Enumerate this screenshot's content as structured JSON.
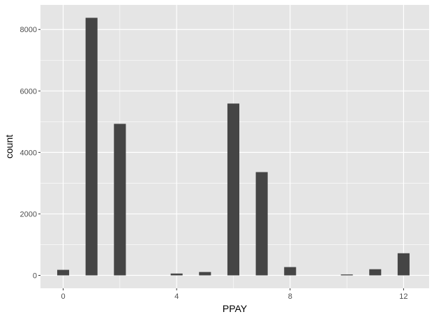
{
  "chart_data": {
    "type": "bar",
    "xlabel": "PPAY",
    "ylabel": "count",
    "x": [
      0,
      1,
      2,
      4,
      5,
      6,
      7,
      8,
      10,
      11,
      12
    ],
    "values": [
      180,
      8380,
      4930,
      60,
      110,
      5590,
      3360,
      270,
      30,
      200,
      720
    ],
    "xticks": [
      "0",
      "4",
      "8",
      "12"
    ],
    "yticks": [
      "0",
      "2000",
      "4000",
      "6000",
      "8000"
    ],
    "xlim": [
      -0.8,
      12.9
    ],
    "ylim": [
      -420,
      8800
    ],
    "grid": true,
    "colors": {
      "panel": "#e5e5e5",
      "grid": "#ffffff",
      "bar": "#454545"
    }
  }
}
